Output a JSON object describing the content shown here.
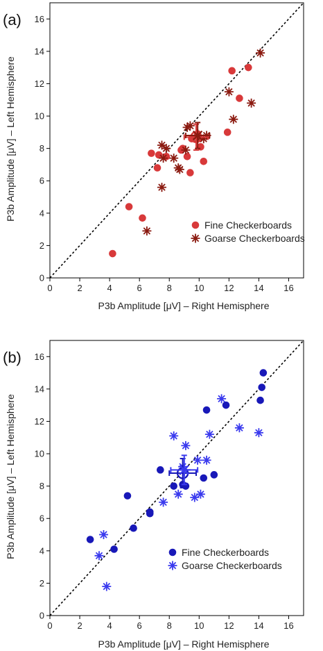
{
  "chart_data": [
    {
      "type": "scatter",
      "panel_label": "(a)",
      "xlabel": "P3b Amplitude [μV] – Right Hemisphere",
      "ylabel": "P3b Amplitude [μV] – Left Hemisphere",
      "xlim": [
        0,
        17
      ],
      "ylim": [
        0,
        17
      ],
      "xticks": [
        0,
        2,
        4,
        6,
        8,
        10,
        12,
        14,
        16
      ],
      "yticks": [
        0,
        2,
        4,
        6,
        8,
        10,
        12,
        14,
        16
      ],
      "reference_line": "identity",
      "legend_position": "bottom-right",
      "series": [
        {
          "name": "Fine Checkerboards",
          "marker": "circle",
          "color": "#d8393a",
          "points": [
            [
              4.2,
              1.5
            ],
            [
              5.3,
              4.4
            ],
            [
              6.2,
              3.7
            ],
            [
              6.8,
              7.7
            ],
            [
              7.2,
              6.8
            ],
            [
              7.3,
              7.6
            ],
            [
              7.8,
              7.5
            ],
            [
              8.8,
              7.9
            ],
            [
              8.9,
              8.0
            ],
            [
              9.2,
              7.5
            ],
            [
              9.4,
              6.5
            ],
            [
              9.5,
              8.6
            ],
            [
              9.9,
              8.9
            ],
            [
              10.1,
              8.1
            ],
            [
              10.3,
              7.2
            ],
            [
              11.9,
              9.0
            ],
            [
              12.2,
              12.8
            ],
            [
              12.7,
              11.1
            ],
            [
              13.3,
              13.0
            ]
          ],
          "mean": {
            "x": 9.8,
            "y": 8.7,
            "x_err": 0.8,
            "y_err": 0.8
          }
        },
        {
          "name": "Goarse Checkerboards",
          "marker": "asterisk",
          "color": "#8b1a10",
          "points": [
            [
              6.5,
              2.9
            ],
            [
              7.5,
              5.6
            ],
            [
              7.6,
              7.4
            ],
            [
              7.5,
              8.2
            ],
            [
              7.8,
              8.0
            ],
            [
              8.3,
              7.4
            ],
            [
              8.6,
              6.8
            ],
            [
              8.7,
              6.7
            ],
            [
              9.1,
              7.9
            ],
            [
              9.2,
              9.3
            ],
            [
              9.4,
              9.4
            ],
            [
              9.9,
              8.6
            ],
            [
              10.3,
              8.6
            ],
            [
              10.5,
              8.8
            ],
            [
              12.0,
              11.5
            ],
            [
              12.3,
              9.8
            ],
            [
              13.5,
              10.8
            ],
            [
              14.1,
              13.9
            ]
          ],
          "mean": {
            "x": 9.9,
            "y": 8.8,
            "x_err": 0.8,
            "y_err": 0.8
          }
        }
      ]
    },
    {
      "type": "scatter",
      "panel_label": "(b)",
      "xlabel": "P3b Amplitude [μV] – Right Hemisphere",
      "ylabel": "P3b Amplitude [μV] – Left Hemisphere",
      "xlim": [
        0,
        17
      ],
      "ylim": [
        0,
        17
      ],
      "xticks": [
        0,
        2,
        4,
        6,
        8,
        10,
        12,
        14,
        16
      ],
      "yticks": [
        0,
        2,
        4,
        6,
        8,
        10,
        12,
        14,
        16
      ],
      "reference_line": "identity",
      "legend_position": "bottom-right",
      "series": [
        {
          "name": "Fine Checkerboards",
          "marker": "circle",
          "color": "#1818b8",
          "points": [
            [
              2.7,
              4.7
            ],
            [
              4.3,
              4.1
            ],
            [
              5.2,
              7.4
            ],
            [
              5.6,
              5.4
            ],
            [
              6.7,
              6.3
            ],
            [
              6.7,
              6.4
            ],
            [
              7.4,
              9.0
            ],
            [
              8.3,
              8.0
            ],
            [
              8.9,
              8.1
            ],
            [
              9.1,
              8.0
            ],
            [
              10.3,
              8.5
            ],
            [
              10.5,
              12.7
            ],
            [
              11.0,
              8.7
            ],
            [
              11.8,
              13.0
            ],
            [
              14.1,
              13.3
            ],
            [
              14.2,
              14.1
            ],
            [
              14.3,
              15.0
            ]
          ],
          "mean": {
            "x": 8.9,
            "y": 8.8,
            "x_err": 0.9,
            "y_err": 0.9
          }
        },
        {
          "name": "Goarse Checkerboards",
          "marker": "asterisk",
          "color": "#3a3aee",
          "points": [
            [
              3.3,
              3.7
            ],
            [
              3.6,
              5.0
            ],
            [
              3.8,
              1.8
            ],
            [
              7.6,
              7.0
            ],
            [
              8.3,
              11.1
            ],
            [
              8.6,
              7.5
            ],
            [
              8.9,
              9.2
            ],
            [
              9.1,
              10.5
            ],
            [
              9.7,
              7.3
            ],
            [
              9.9,
              9.6
            ],
            [
              10.1,
              7.5
            ],
            [
              10.5,
              9.6
            ],
            [
              10.7,
              11.2
            ],
            [
              11.5,
              13.4
            ],
            [
              12.7,
              11.6
            ],
            [
              14.0,
              11.3
            ]
          ],
          "mean": {
            "x": 9.0,
            "y": 9.0,
            "x_err": 0.9,
            "y_err": 0.9
          }
        }
      ]
    }
  ]
}
